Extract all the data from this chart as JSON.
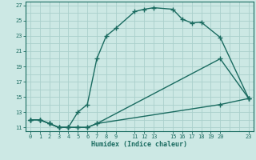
{
  "xlabel": "Humidex (Indice chaleur)",
  "bg_color": "#cce8e4",
  "grid_color": "#aacfcb",
  "line_color": "#1a6b60",
  "xlim": [
    -0.5,
    23.5
  ],
  "ylim": [
    10.5,
    27.5
  ],
  "xticks": [
    0,
    1,
    2,
    3,
    4,
    5,
    6,
    7,
    8,
    9,
    11,
    12,
    13,
    15,
    16,
    17,
    18,
    19,
    20,
    23
  ],
  "yticks": [
    11,
    13,
    15,
    17,
    19,
    21,
    23,
    25,
    27
  ],
  "line1_x": [
    0,
    1,
    2,
    3,
    4,
    5,
    6,
    7,
    8,
    9,
    11,
    12,
    13,
    15,
    16,
    17,
    18,
    20,
    23
  ],
  "line1_y": [
    12,
    12,
    11.5,
    11,
    11,
    13,
    14,
    20,
    23,
    24,
    26.2,
    26.5,
    26.7,
    26.5,
    25.2,
    24.7,
    24.8,
    22.8,
    14.8
  ],
  "line2_x": [
    0,
    1,
    2,
    3,
    4,
    5,
    6,
    7,
    20,
    23
  ],
  "line2_y": [
    12,
    12,
    11.5,
    11,
    11,
    11,
    11,
    11.5,
    20,
    14.8
  ],
  "line3_x": [
    0,
    1,
    2,
    3,
    4,
    5,
    6,
    7,
    20,
    23
  ],
  "line3_y": [
    12,
    12,
    11.5,
    11,
    11,
    11,
    11,
    11.5,
    14,
    14.8
  ]
}
